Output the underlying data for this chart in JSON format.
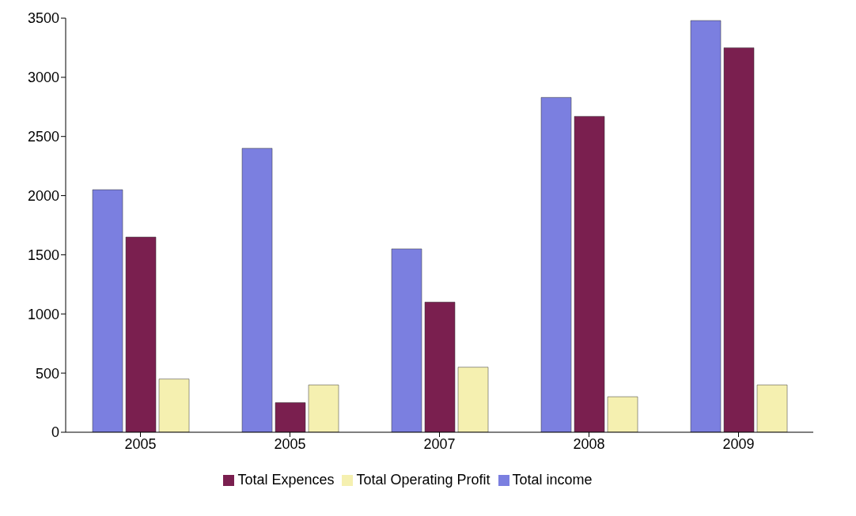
{
  "chart_data": {
    "type": "bar",
    "categories": [
      "2005",
      "2005",
      "2007",
      "2008",
      "2009"
    ],
    "series": [
      {
        "name": "Total income",
        "color": "#7b7fe0",
        "values": [
          2050,
          2400,
          1550,
          2830,
          3480
        ]
      },
      {
        "name": "Total Expences",
        "color": "#7a1f4f",
        "values": [
          1650,
          250,
          1100,
          2670,
          3250
        ]
      },
      {
        "name": "Total Operating Profit",
        "color": "#f5f0b0",
        "values": [
          450,
          400,
          550,
          300,
          400
        ]
      }
    ],
    "ylim": [
      0,
      3500
    ],
    "yticks": [
      0,
      500,
      1000,
      1500,
      2000,
      2500,
      3000,
      3500
    ],
    "grid": false,
    "legend": "bottom"
  }
}
